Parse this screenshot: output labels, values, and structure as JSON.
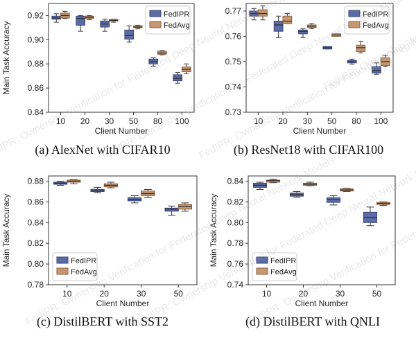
{
  "figure": {
    "watermark": "FedIPR: Ownership Verification for Federated Deep Neural Network Models",
    "colors": {
      "fedipr_fill": "#5b6ba6",
      "fedipr_edge": "#3a4574",
      "fedavg_fill": "#c89770",
      "fedavg_edge": "#8a6240",
      "median": "#2f2f2f",
      "watermark": "#9a9a9a"
    }
  },
  "chart_data": [
    {
      "id": "a",
      "type": "box",
      "caption": "(a) AlexNet with CIFAR10",
      "xlabel": "Client Number",
      "ylabel": "Main Task Accuracy",
      "ylim": [
        0.84,
        0.93
      ],
      "yticks": [
        0.84,
        0.86,
        0.88,
        0.9,
        0.92
      ],
      "ytick_labels": [
        "0.84",
        "0.86",
        "0.88",
        "0.90",
        "0.92"
      ],
      "categories": [
        "10",
        "20",
        "30",
        "50",
        "80",
        "100"
      ],
      "legend": "top-right",
      "series": [
        {
          "name": "FedIPR",
          "boxes": [
            {
              "wlo": 0.9145,
              "q1": 0.917,
              "med": 0.918,
              "q3": 0.9195,
              "whi": 0.9215
            },
            {
              "wlo": 0.907,
              "q1": 0.912,
              "med": 0.9175,
              "q3": 0.9195,
              "whi": 0.92
            },
            {
              "wlo": 0.907,
              "q1": 0.9105,
              "med": 0.913,
              "q3": 0.9155,
              "whi": 0.917
            },
            {
              "wlo": 0.898,
              "q1": 0.9005,
              "med": 0.9035,
              "q3": 0.908,
              "whi": 0.9115
            },
            {
              "wlo": 0.878,
              "q1": 0.88,
              "med": 0.882,
              "q3": 0.884,
              "whi": 0.885
            },
            {
              "wlo": 0.864,
              "q1": 0.866,
              "med": 0.868,
              "q3": 0.871,
              "whi": 0.873
            }
          ]
        },
        {
          "name": "FedAvg",
          "boxes": [
            {
              "wlo": 0.9175,
              "q1": 0.918,
              "med": 0.92,
              "q3": 0.922,
              "whi": 0.9235
            },
            {
              "wlo": 0.9165,
              "q1": 0.9175,
              "med": 0.9185,
              "q3": 0.9195,
              "whi": 0.92
            },
            {
              "wlo": 0.9145,
              "q1": 0.9155,
              "med": 0.916,
              "q3": 0.9168,
              "whi": 0.917
            },
            {
              "wlo": 0.909,
              "q1": 0.91,
              "med": 0.9105,
              "q3": 0.9115,
              "whi": 0.912
            },
            {
              "wlo": 0.8875,
              "q1": 0.888,
              "med": 0.889,
              "q3": 0.8905,
              "whi": 0.891
            },
            {
              "wlo": 0.872,
              "q1": 0.8735,
              "med": 0.8755,
              "q3": 0.8775,
              "whi": 0.88
            }
          ]
        }
      ]
    },
    {
      "id": "b",
      "type": "box",
      "caption": "(b) ResNet18 with CIFAR100",
      "xlabel": "Client Number",
      "ylabel": "",
      "ylim": [
        0.73,
        0.773
      ],
      "yticks": [
        0.73,
        0.74,
        0.75,
        0.76,
        0.77
      ],
      "ytick_labels": [
        "0.73",
        "0.74",
        "0.75",
        "0.76",
        "0.77"
      ],
      "categories": [
        "10",
        "20",
        "30",
        "50",
        "80",
        "100"
      ],
      "legend": "top-right",
      "series": [
        {
          "name": "FedIPR",
          "boxes": [
            {
              "wlo": 0.7665,
              "q1": 0.768,
              "med": 0.769,
              "q3": 0.77,
              "whi": 0.771
            },
            {
              "wlo": 0.7595,
              "q1": 0.762,
              "med": 0.7645,
              "q3": 0.766,
              "whi": 0.768
            },
            {
              "wlo": 0.7595,
              "q1": 0.761,
              "med": 0.762,
              "q3": 0.7625,
              "whi": 0.763
            },
            {
              "wlo": 0.755,
              "q1": 0.755,
              "med": 0.7555,
              "q3": 0.756,
              "whi": 0.756
            },
            {
              "wlo": 0.749,
              "q1": 0.7495,
              "med": 0.75,
              "q3": 0.7505,
              "whi": 0.751
            },
            {
              "wlo": 0.745,
              "q1": 0.7455,
              "med": 0.7465,
              "q3": 0.748,
              "whi": 0.7495
            }
          ]
        },
        {
          "name": "FedAvg",
          "boxes": [
            {
              "wlo": 0.7665,
              "q1": 0.768,
              "med": 0.769,
              "q3": 0.7705,
              "whi": 0.772
            },
            {
              "wlo": 0.765,
              "q1": 0.765,
              "med": 0.766,
              "q3": 0.768,
              "whi": 0.769
            },
            {
              "wlo": 0.763,
              "q1": 0.7635,
              "med": 0.764,
              "q3": 0.7645,
              "whi": 0.765
            },
            {
              "wlo": 0.76,
              "q1": 0.76,
              "med": 0.7605,
              "q3": 0.761,
              "whi": 0.761
            },
            {
              "wlo": 0.7535,
              "q1": 0.754,
              "med": 0.7555,
              "q3": 0.7565,
              "whi": 0.758
            },
            {
              "wlo": 0.748,
              "q1": 0.7485,
              "med": 0.75,
              "q3": 0.7515,
              "whi": 0.7525
            }
          ]
        }
      ]
    },
    {
      "id": "c",
      "type": "box",
      "caption": "(c) DistilBERT with SST2",
      "xlabel": "Client Number",
      "ylabel": "Main Task Accuracy",
      "ylim": [
        0.78,
        0.885
      ],
      "yticks": [
        0.78,
        0.8,
        0.82,
        0.84,
        0.86,
        0.88
      ],
      "ytick_labels": [
        "0.78",
        "0.80",
        "0.82",
        "0.84",
        "0.86",
        "0.88"
      ],
      "categories": [
        "10",
        "20",
        "30",
        "50"
      ],
      "legend": "lower-left",
      "series": [
        {
          "name": "FedIPR",
          "boxes": [
            {
              "wlo": 0.876,
              "q1": 0.877,
              "med": 0.878,
              "q3": 0.879,
              "whi": 0.88
            },
            {
              "wlo": 0.869,
              "q1": 0.87,
              "med": 0.8705,
              "q3": 0.872,
              "whi": 0.874
            },
            {
              "wlo": 0.859,
              "q1": 0.861,
              "med": 0.8625,
              "q3": 0.864,
              "whi": 0.866
            },
            {
              "wlo": 0.847,
              "q1": 0.851,
              "med": 0.853,
              "q3": 0.854,
              "whi": 0.856
            }
          ]
        },
        {
          "name": "FedAvg",
          "boxes": [
            {
              "wlo": 0.8775,
              "q1": 0.879,
              "med": 0.88,
              "q3": 0.881,
              "whi": 0.8815
            },
            {
              "wlo": 0.8735,
              "q1": 0.8745,
              "med": 0.876,
              "q3": 0.8775,
              "whi": 0.879
            },
            {
              "wlo": 0.864,
              "q1": 0.866,
              "med": 0.868,
              "q3": 0.8705,
              "whi": 0.872
            },
            {
              "wlo": 0.851,
              "q1": 0.853,
              "med": 0.8555,
              "q3": 0.8575,
              "whi": 0.859
            }
          ]
        }
      ]
    },
    {
      "id": "d",
      "type": "box",
      "caption": "(d) DistilBERT with QNLI",
      "xlabel": "Client Number",
      "ylabel": "Main Task Accuracy",
      "ylim": [
        0.74,
        0.845
      ],
      "yticks": [
        0.74,
        0.76,
        0.78,
        0.8,
        0.82,
        0.84
      ],
      "ytick_labels": [
        "0.74",
        "0.76",
        "0.78",
        "0.80",
        "0.82",
        "0.84"
      ],
      "categories": [
        "10",
        "20",
        "30",
        "50"
      ],
      "legend": "lower-left",
      "series": [
        {
          "name": "FedIPR",
          "boxes": [
            {
              "wlo": 0.832,
              "q1": 0.834,
              "med": 0.836,
              "q3": 0.838,
              "whi": 0.839
            },
            {
              "wlo": 0.8245,
              "q1": 0.8255,
              "med": 0.827,
              "q3": 0.8285,
              "whi": 0.83
            },
            {
              "wlo": 0.817,
              "q1": 0.8195,
              "med": 0.822,
              "q3": 0.824,
              "whi": 0.826
            },
            {
              "wlo": 0.797,
              "q1": 0.8,
              "med": 0.805,
              "q3": 0.81,
              "whi": 0.815
            }
          ]
        },
        {
          "name": "FedAvg",
          "boxes": [
            {
              "wlo": 0.8385,
              "q1": 0.839,
              "med": 0.8405,
              "q3": 0.841,
              "whi": 0.842
            },
            {
              "wlo": 0.8355,
              "q1": 0.836,
              "med": 0.837,
              "q3": 0.838,
              "whi": 0.839
            },
            {
              "wlo": 0.83,
              "q1": 0.8305,
              "med": 0.8315,
              "q3": 0.8325,
              "whi": 0.833
            },
            {
              "wlo": 0.8165,
              "q1": 0.8175,
              "med": 0.8185,
              "q3": 0.8195,
              "whi": 0.82
            }
          ]
        }
      ]
    }
  ]
}
